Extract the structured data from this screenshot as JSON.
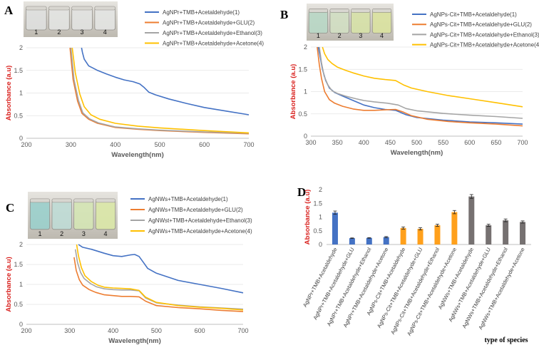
{
  "figure": {
    "panels": [
      "A",
      "B",
      "C",
      "D"
    ],
    "vial_labels": [
      "1",
      "2",
      "3",
      "4"
    ]
  },
  "colors": {
    "blue": "#4472c4",
    "orange": "#ed7d31",
    "gray": "#a5a5a5",
    "yellow": "#ffc000",
    "darkgray": "#767171"
  },
  "chart_data": [
    {
      "panel": "A",
      "type": "line",
      "xlabel": "Wavelength(nm)",
      "ylabel": "Absorbance (a.u)",
      "xlim": [
        200,
        700
      ],
      "ylim": [
        0,
        2
      ],
      "xticks": [
        200,
        300,
        400,
        500,
        600,
        700
      ],
      "yticks": [
        0,
        0.5,
        1,
        1.5,
        2
      ],
      "series": [
        {
          "name": "AgNPr+TMB+Acetaldehyde(1)",
          "color": "#4472c4",
          "x": [
            324,
            326,
            330,
            340,
            350,
            360,
            380,
            400,
            420,
            440,
            455,
            465,
            475,
            490,
            520,
            560,
            600,
            650,
            700
          ],
          "y": [
            2.0,
            1.9,
            1.75,
            1.6,
            1.55,
            1.5,
            1.42,
            1.35,
            1.29,
            1.25,
            1.2,
            1.12,
            1.02,
            0.96,
            0.87,
            0.77,
            0.68,
            0.6,
            0.52
          ]
        },
        {
          "name": "AgNPr+TMB+Acetaldehyde+GLU(2)",
          "color": "#ed7d31",
          "x": [
            298,
            305,
            315,
            325,
            340,
            360,
            400,
            450,
            500,
            600,
            700
          ],
          "y": [
            2.0,
            1.3,
            0.82,
            0.55,
            0.42,
            0.33,
            0.24,
            0.2,
            0.17,
            0.13,
            0.1
          ]
        },
        {
          "name": "AgNPr+TMB+Acetaldehyde+Ethanol(3)",
          "color": "#a5a5a5",
          "x": [
            300,
            307,
            317,
            327,
            342,
            362,
            400,
            450,
            500,
            600,
            700
          ],
          "y": [
            2.0,
            1.3,
            0.84,
            0.56,
            0.43,
            0.34,
            0.25,
            0.21,
            0.18,
            0.14,
            0.11
          ]
        },
        {
          "name": "AgNPr+TMB+Acetaldehyde+Acetone(4)",
          "color": "#ffc000",
          "x": [
            303,
            310,
            320,
            330,
            345,
            365,
            400,
            450,
            500,
            600,
            700
          ],
          "y": [
            2.0,
            1.45,
            0.98,
            0.7,
            0.52,
            0.42,
            0.33,
            0.27,
            0.23,
            0.17,
            0.12
          ]
        }
      ]
    },
    {
      "panel": "B",
      "type": "line",
      "xlabel": "Wavelength(nm)",
      "ylabel": "Absorbance (a.u)",
      "xlim": [
        300,
        700
      ],
      "ylim": [
        0,
        2
      ],
      "xticks": [
        300,
        350,
        400,
        450,
        500,
        550,
        600,
        650,
        700
      ],
      "yticks": [
        0,
        0.5,
        1,
        1.5,
        2
      ],
      "series": [
        {
          "name": "AgNPs-Cit+TMB+Acetaldehyde(1)",
          "color": "#4472c4",
          "x": [
            314,
            318,
            322,
            328,
            335,
            345,
            360,
            380,
            400,
            420,
            440,
            460,
            480,
            500,
            550,
            600,
            650,
            700
          ],
          "y": [
            2.0,
            1.75,
            1.5,
            1.25,
            1.08,
            0.98,
            0.9,
            0.8,
            0.7,
            0.64,
            0.6,
            0.58,
            0.48,
            0.42,
            0.36,
            0.32,
            0.3,
            0.27
          ]
        },
        {
          "name": "AgNPs-Cit+TMB+Acetaldehyde+GLU(2)",
          "color": "#ed7d31",
          "x": [
            312,
            316,
            320,
            326,
            335,
            345,
            360,
            380,
            400,
            420,
            440,
            460,
            475,
            490,
            520,
            560,
            600,
            650,
            700
          ],
          "y": [
            2.0,
            1.6,
            1.3,
            1.0,
            0.82,
            0.74,
            0.67,
            0.61,
            0.58,
            0.58,
            0.59,
            0.6,
            0.54,
            0.46,
            0.38,
            0.33,
            0.3,
            0.27,
            0.23
          ]
        },
        {
          "name": "AgNPs-Cit+TMB+Acetaldehyde+Ethanol(3)",
          "color": "#a5a5a5",
          "x": [
            316,
            320,
            325,
            332,
            340,
            350,
            365,
            385,
            400,
            420,
            445,
            465,
            480,
            500,
            550,
            600,
            650,
            700
          ],
          "y": [
            2.0,
            1.65,
            1.35,
            1.15,
            1.02,
            0.96,
            0.9,
            0.84,
            0.8,
            0.77,
            0.74,
            0.7,
            0.62,
            0.57,
            0.51,
            0.47,
            0.44,
            0.4
          ]
        },
        {
          "name": "AgNPs-Cit+TMB+Acetaldehyde+Acetone(4)",
          "color": "#ffc000",
          "x": [
            322,
            326,
            332,
            340,
            350,
            365,
            380,
            400,
            420,
            440,
            460,
            475,
            490,
            520,
            560,
            600,
            650,
            700
          ],
          "y": [
            2.0,
            1.85,
            1.72,
            1.63,
            1.55,
            1.48,
            1.42,
            1.35,
            1.3,
            1.27,
            1.25,
            1.15,
            1.08,
            1.0,
            0.91,
            0.84,
            0.75,
            0.66
          ]
        }
      ]
    },
    {
      "panel": "C",
      "type": "line",
      "xlabel": "Wavelength(nm)",
      "ylabel": "Absorbance (a.u)",
      "xlim": [
        200,
        700
      ],
      "ylim": [
        0,
        2
      ],
      "xticks": [
        200,
        300,
        400,
        500,
        600,
        700
      ],
      "yticks": [
        0,
        0.5,
        1,
        1.5,
        2
      ],
      "series": [
        {
          "name": "AgNWs+TMB+Acetaldehyde(1)",
          "color": "#4472c4",
          "x": [
            320,
            330,
            350,
            380,
            400,
            420,
            440,
            450,
            460,
            470,
            480,
            500,
            550,
            600,
            650,
            700
          ],
          "y": [
            2.0,
            1.93,
            1.88,
            1.78,
            1.72,
            1.7,
            1.74,
            1.75,
            1.7,
            1.55,
            1.4,
            1.28,
            1.1,
            1.0,
            0.9,
            0.79
          ]
        },
        {
          "name": "AgNWs+TMB+Acetaldehyde+GLU(2)",
          "color": "#ed7d31",
          "x": [
            310,
            315,
            322,
            330,
            345,
            360,
            380,
            400,
            420,
            440,
            460,
            475,
            500,
            550,
            600,
            650,
            700
          ],
          "y": [
            1.68,
            1.35,
            1.12,
            0.98,
            0.87,
            0.8,
            0.74,
            0.72,
            0.7,
            0.7,
            0.69,
            0.58,
            0.47,
            0.42,
            0.39,
            0.35,
            0.32
          ]
        },
        {
          "name": "AgNWst+TMB+Acetaldehyde+Ethanol(3)",
          "color": "#a5a5a5",
          "x": [
            313,
            318,
            325,
            333,
            348,
            362,
            380,
            400,
            420,
            440,
            460,
            475,
            500,
            550,
            600,
            650,
            700
          ],
          "y": [
            1.88,
            1.55,
            1.3,
            1.15,
            1.02,
            0.94,
            0.89,
            0.87,
            0.86,
            0.86,
            0.84,
            0.66,
            0.54,
            0.48,
            0.44,
            0.41,
            0.38
          ]
        },
        {
          "name": "AgNWs+TMB+Acetaldehyde+Acetone(4)",
          "color": "#ffc000",
          "x": [
            316,
            320,
            327,
            335,
            350,
            365,
            380,
            400,
            420,
            440,
            460,
            475,
            500,
            550,
            600,
            650,
            700
          ],
          "y": [
            2.0,
            1.72,
            1.42,
            1.22,
            1.07,
            0.98,
            0.93,
            0.91,
            0.9,
            0.89,
            0.85,
            0.68,
            0.55,
            0.47,
            0.43,
            0.4,
            0.36
          ]
        }
      ]
    },
    {
      "panel": "D",
      "type": "bar",
      "xlabel": "type of species",
      "ylabel": "Absorbance (a.u)",
      "ylim": [
        0,
        2
      ],
      "yticks": [
        0,
        0.5,
        1,
        1.5,
        2
      ],
      "categories": [
        "AgNPr+TMB+Acetaldehyde",
        "AgNPr+TMB+Acetaldehyde+GLU",
        "AgNPr+TMB+Acetaldehyde+Ethanol",
        "AgNPr+TMB+Acetaldehyde+Acetone",
        "AgNPs-Cit+TMB+Acetaldehyde",
        "AgNPs-Cit+TMB+Acetaldehyde+GLU",
        "AgNPs-Cit+TMB+Acetaldehyde+Ethanol",
        "AgNPs-Cit+TMB+Acetaldehyde+Acetone",
        "AgNWs+TMB+Acetaldehyde",
        "AgNWs+TMB+Acetaldehyde+GLU",
        "AgNWs+TMB+Acetaldehyde+Ethanol",
        "AgNWs+TMB+Acetaldehyde+Acetone"
      ],
      "values": [
        1.16,
        0.23,
        0.24,
        0.27,
        0.6,
        0.57,
        0.7,
        1.18,
        1.75,
        0.7,
        0.88,
        0.82
      ],
      "errors": [
        0.06,
        0.01,
        0.01,
        0.02,
        0.04,
        0.04,
        0.04,
        0.06,
        0.07,
        0.04,
        0.05,
        0.04
      ],
      "colors": [
        "#4472c4",
        "#4472c4",
        "#4472c4",
        "#4472c4",
        "#ffa01c",
        "#ffa01c",
        "#ffa01c",
        "#ffa01c",
        "#767171",
        "#767171",
        "#767171",
        "#767171"
      ]
    }
  ]
}
